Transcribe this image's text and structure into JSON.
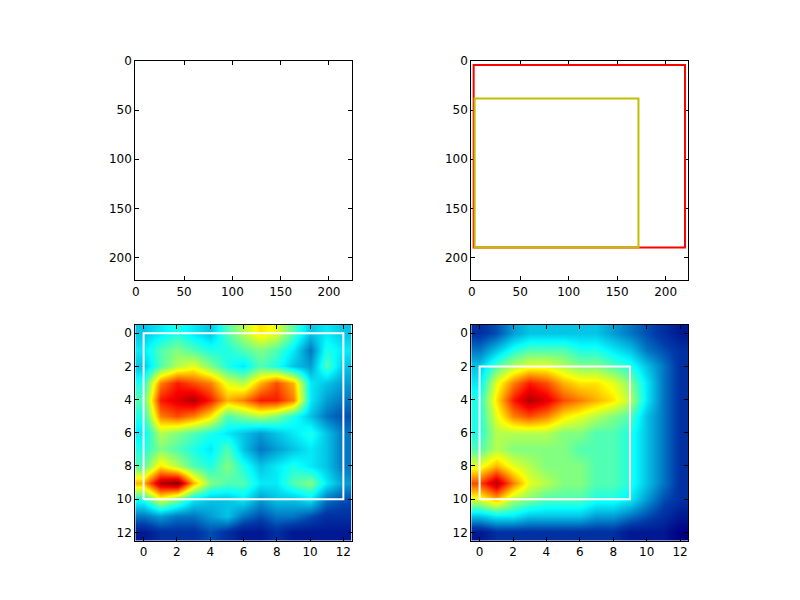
{
  "chart_data": [
    {
      "type": "image",
      "grid": false,
      "xlim": [
        -0.5,
        223.5
      ],
      "ylim": [
        223.5,
        -0.5
      ],
      "xticks": [
        0,
        50,
        100,
        150,
        200
      ],
      "yticks": [
        0,
        50,
        100,
        150,
        200
      ],
      "boxes": []
    },
    {
      "type": "image",
      "grid": false,
      "xlim": [
        -0.5,
        223.5
      ],
      "ylim": [
        223.5,
        -0.5
      ],
      "xticks": [
        0,
        50,
        100,
        150,
        200
      ],
      "yticks": [
        0,
        50,
        100,
        150,
        200
      ],
      "boxes": [
        {
          "x0": 2,
          "y0": 4,
          "x1": 220,
          "y1": 190,
          "color": "#ff0000"
        },
        {
          "x0": 3,
          "y0": 38,
          "x1": 172,
          "y1": 190,
          "color": "#bfbf00"
        }
      ]
    },
    {
      "type": "heatmap",
      "grid": false,
      "xlim": [
        -0.5,
        12.5
      ],
      "ylim": [
        12.5,
        -0.5
      ],
      "xticks": [
        0,
        2,
        4,
        6,
        8,
        10,
        12
      ],
      "yticks": [
        0,
        2,
        4,
        6,
        8,
        10,
        12
      ],
      "zlim": [
        0,
        1
      ],
      "cells": [
        [
          0.3,
          0.35,
          0.4,
          0.35,
          0.3,
          0.45,
          0.55,
          0.65,
          0.6,
          0.45,
          0.3,
          0.35,
          0.3
        ],
        [
          0.35,
          0.45,
          0.5,
          0.45,
          0.4,
          0.4,
          0.45,
          0.5,
          0.45,
          0.35,
          0.2,
          0.4,
          0.35
        ],
        [
          0.3,
          0.45,
          0.55,
          0.6,
          0.5,
          0.4,
          0.35,
          0.45,
          0.4,
          0.3,
          0.25,
          0.45,
          0.3
        ],
        [
          0.4,
          0.75,
          0.85,
          0.8,
          0.75,
          0.6,
          0.55,
          0.7,
          0.8,
          0.7,
          0.35,
          0.3,
          0.25
        ],
        [
          0.45,
          0.85,
          0.9,
          0.95,
          0.85,
          0.7,
          0.75,
          0.85,
          0.85,
          0.75,
          0.35,
          0.25,
          0.2
        ],
        [
          0.4,
          0.75,
          0.8,
          0.75,
          0.65,
          0.45,
          0.5,
          0.55,
          0.5,
          0.4,
          0.3,
          0.2,
          0.15
        ],
        [
          0.35,
          0.55,
          0.5,
          0.45,
          0.4,
          0.35,
          0.3,
          0.25,
          0.3,
          0.35,
          0.4,
          0.3,
          0.2
        ],
        [
          0.4,
          0.5,
          0.45,
          0.4,
          0.35,
          0.45,
          0.3,
          0.2,
          0.25,
          0.3,
          0.35,
          0.3,
          0.2
        ],
        [
          0.45,
          0.65,
          0.55,
          0.45,
          0.4,
          0.5,
          0.4,
          0.3,
          0.35,
          0.4,
          0.35,
          0.3,
          0.2
        ],
        [
          0.7,
          0.95,
          1.0,
          0.7,
          0.5,
          0.45,
          0.45,
          0.35,
          0.35,
          0.45,
          0.5,
          0.35,
          0.25
        ],
        [
          0.4,
          0.6,
          0.5,
          0.35,
          0.3,
          0.3,
          0.35,
          0.25,
          0.3,
          0.3,
          0.35,
          0.2,
          0.15
        ],
        [
          0.2,
          0.25,
          0.2,
          0.2,
          0.25,
          0.3,
          0.2,
          0.15,
          0.2,
          0.2,
          0.15,
          0.1,
          0.1
        ],
        [
          0.05,
          0.1,
          0.1,
          0.1,
          0.15,
          0.1,
          0.05,
          0.05,
          0.1,
          0.05,
          0.05,
          0.05,
          0.05
        ]
      ],
      "boxes": [
        {
          "x0": 0,
          "y0": 0,
          "x1": 12,
          "y1": 10,
          "color": "#ffffff"
        }
      ]
    },
    {
      "type": "heatmap",
      "grid": false,
      "xlim": [
        -0.5,
        12.5
      ],
      "ylim": [
        12.5,
        -0.5
      ],
      "xticks": [
        0,
        2,
        4,
        6,
        8,
        10,
        12
      ],
      "yticks": [
        0,
        2,
        4,
        6,
        8,
        10,
        12
      ],
      "zlim": [
        0,
        1
      ],
      "cells": [
        [
          0.1,
          0.15,
          0.25,
          0.3,
          0.3,
          0.3,
          0.3,
          0.3,
          0.25,
          0.2,
          0.15,
          0.1,
          0.05
        ],
        [
          0.2,
          0.3,
          0.4,
          0.45,
          0.45,
          0.45,
          0.4,
          0.4,
          0.35,
          0.3,
          0.2,
          0.15,
          0.1
        ],
        [
          0.3,
          0.45,
          0.55,
          0.6,
          0.6,
          0.55,
          0.5,
          0.5,
          0.45,
          0.4,
          0.3,
          0.2,
          0.1
        ],
        [
          0.35,
          0.6,
          0.75,
          0.85,
          0.8,
          0.7,
          0.65,
          0.65,
          0.6,
          0.5,
          0.35,
          0.2,
          0.1
        ],
        [
          0.4,
          0.65,
          0.85,
          0.95,
          0.9,
          0.8,
          0.75,
          0.7,
          0.65,
          0.55,
          0.35,
          0.2,
          0.1
        ],
        [
          0.4,
          0.6,
          0.75,
          0.8,
          0.75,
          0.65,
          0.6,
          0.55,
          0.5,
          0.45,
          0.3,
          0.2,
          0.1
        ],
        [
          0.4,
          0.55,
          0.55,
          0.55,
          0.55,
          0.5,
          0.5,
          0.45,
          0.45,
          0.4,
          0.3,
          0.2,
          0.1
        ],
        [
          0.45,
          0.55,
          0.5,
          0.5,
          0.5,
          0.5,
          0.45,
          0.45,
          0.45,
          0.4,
          0.3,
          0.2,
          0.1
        ],
        [
          0.6,
          0.7,
          0.6,
          0.55,
          0.5,
          0.5,
          0.5,
          0.45,
          0.45,
          0.4,
          0.3,
          0.2,
          0.1
        ],
        [
          0.8,
          0.95,
          0.75,
          0.6,
          0.55,
          0.5,
          0.5,
          0.45,
          0.45,
          0.4,
          0.3,
          0.2,
          0.1
        ],
        [
          0.6,
          0.7,
          0.55,
          0.5,
          0.45,
          0.45,
          0.45,
          0.4,
          0.4,
          0.35,
          0.25,
          0.15,
          0.1
        ],
        [
          0.3,
          0.35,
          0.35,
          0.3,
          0.3,
          0.3,
          0.3,
          0.25,
          0.25,
          0.2,
          0.15,
          0.1,
          0.05
        ],
        [
          0.05,
          0.1,
          0.1,
          0.1,
          0.1,
          0.1,
          0.1,
          0.1,
          0.1,
          0.05,
          0.05,
          0.05,
          0.0
        ]
      ],
      "boxes": [
        {
          "x0": 0,
          "y0": 2,
          "x1": 9,
          "y1": 10,
          "color": "#ffffff"
        }
      ]
    }
  ]
}
